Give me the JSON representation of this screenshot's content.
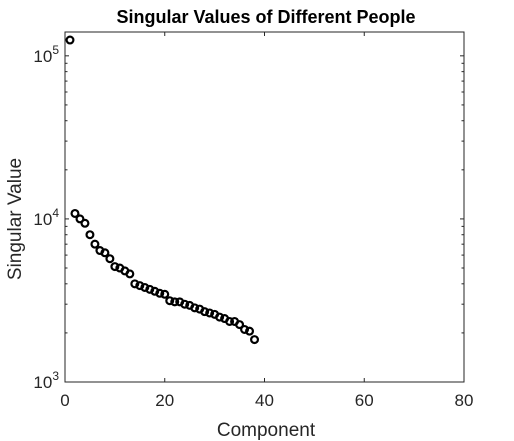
{
  "chart_data": {
    "type": "scatter",
    "title": "Singular Values of Different People",
    "xlabel": "Component",
    "ylabel": "Singular Value",
    "xlim": [
      0,
      80
    ],
    "ylim": [
      1000,
      140000
    ],
    "yscale": "log",
    "grid": false,
    "marker": "open-circle",
    "marker_color": "#000000",
    "xticks": [
      0,
      20,
      40,
      60,
      80
    ],
    "xtick_labels": [
      "0",
      "20",
      "40",
      "60",
      "80"
    ],
    "yticks": [
      1000,
      10000,
      100000
    ],
    "ytick_labels": [
      {
        "base": "10",
        "exp": "3"
      },
      {
        "base": "10",
        "exp": "4"
      },
      {
        "base": "10",
        "exp": "5"
      }
    ],
    "x": [
      1,
      2,
      3,
      4,
      5,
      6,
      7,
      8,
      9,
      10,
      11,
      12,
      13,
      14,
      15,
      16,
      17,
      18,
      19,
      20,
      21,
      22,
      23,
      24,
      25,
      26,
      27,
      28,
      29,
      30,
      31,
      32,
      33,
      34,
      35,
      36,
      37,
      38
    ],
    "y": [
      125000,
      10800,
      10000,
      9400,
      8000,
      7000,
      6400,
      6200,
      5700,
      5100,
      5000,
      4800,
      4600,
      4000,
      3900,
      3800,
      3700,
      3600,
      3500,
      3450,
      3150,
      3100,
      3100,
      3000,
      2950,
      2850,
      2800,
      2700,
      2650,
      2600,
      2500,
      2450,
      2350,
      2350,
      2250,
      2100,
      2050,
      1820
    ]
  }
}
